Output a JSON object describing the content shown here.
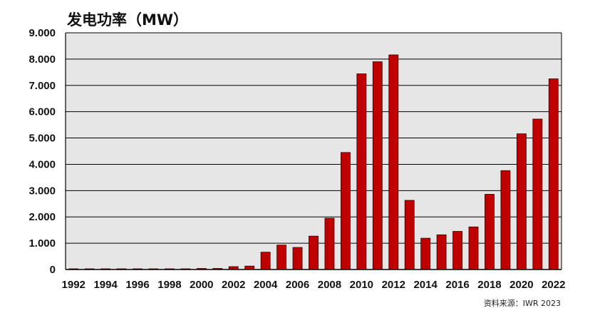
{
  "chart_data": {
    "type": "bar",
    "title": "发电功率（MW）",
    "source": "资料来源：IWR 2023",
    "xlabel": "",
    "ylabel": "",
    "ylim": [
      0,
      9000
    ],
    "yticks": [
      0,
      1000,
      2000,
      3000,
      4000,
      5000,
      6000,
      7000,
      8000,
      9000
    ],
    "ytick_labels": [
      "0",
      "1.000",
      "2.000",
      "3.000",
      "4.000",
      "5.000",
      "6.000",
      "7.000",
      "8.000",
      "9.000"
    ],
    "categories": [
      "1992",
      "1993",
      "1994",
      "1995",
      "1996",
      "1997",
      "1998",
      "1999",
      "2000",
      "2001",
      "2002",
      "2003",
      "2004",
      "2005",
      "2006",
      "2007",
      "2008",
      "2009",
      "2010",
      "2011",
      "2012",
      "2013",
      "2014",
      "2015",
      "2016",
      "2017",
      "2018",
      "2019",
      "2020",
      "2021",
      "2022"
    ],
    "xtick_labels": [
      "1992",
      "1994",
      "1996",
      "1998",
      "2000",
      "2002",
      "2004",
      "2006",
      "2008",
      "2010",
      "2012",
      "2014",
      "2016",
      "2018",
      "2020",
      "2022"
    ],
    "values": [
      10,
      10,
      10,
      10,
      10,
      10,
      10,
      10,
      40,
      40,
      110,
      130,
      660,
      930,
      840,
      1270,
      1950,
      4450,
      7440,
      7900,
      8160,
      2630,
      1190,
      1320,
      1450,
      1620,
      2860,
      3760,
      5160,
      5720,
      7250
    ],
    "grid": true,
    "colors": {
      "bar_fill": "#c00000",
      "bar_stroke": "#3a0000",
      "plot_background": "#e6e6e6",
      "gridline": "#000000",
      "text": "#111111"
    }
  }
}
